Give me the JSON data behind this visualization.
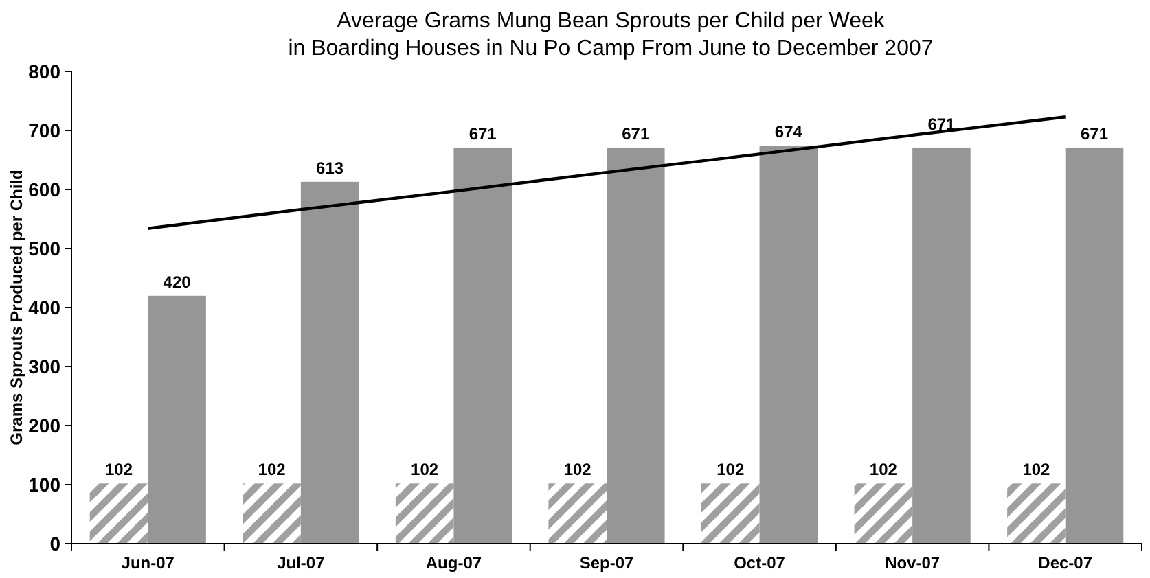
{
  "chart_data": {
    "type": "bar",
    "title": "Average Grams Mung Bean Sprouts per Child per Week\nin Boarding Houses in Nu Po Camp From June to December 2007",
    "ylabel": "Grams Sprouts Produced per Child",
    "categories": [
      "Jun-07",
      "Jul-07",
      "Aug-07",
      "Sep-07",
      "Oct-07",
      "Nov-07",
      "Dec-07"
    ],
    "series": [
      {
        "color": "#a0a0a0",
        "values": [
          102,
          102,
          102,
          102,
          102,
          102,
          102
        ],
        "value_labels": [
          "102",
          "102",
          "102",
          "102",
          "102",
          "102",
          "102"
        ]
      },
      {
        "color": "#969696",
        "values": [
          420,
          613,
          671,
          671,
          674,
          671,
          671
        ],
        "value_labels": [
          "420",
          "613",
          "671",
          "671",
          "674",
          "671",
          "671"
        ]
      },
      {
        "type": "line",
        "color": "#000000",
        "values": [
          534,
          566,
          597,
          629,
          660,
          692,
          723
        ]
      }
    ],
    "ylim": [
      0,
      800
    ],
    "yticks": [
      0,
      100,
      200,
      300,
      400,
      500,
      600,
      700,
      800
    ],
    "grid": false,
    "marker": "none",
    "line_style": "solid"
  }
}
